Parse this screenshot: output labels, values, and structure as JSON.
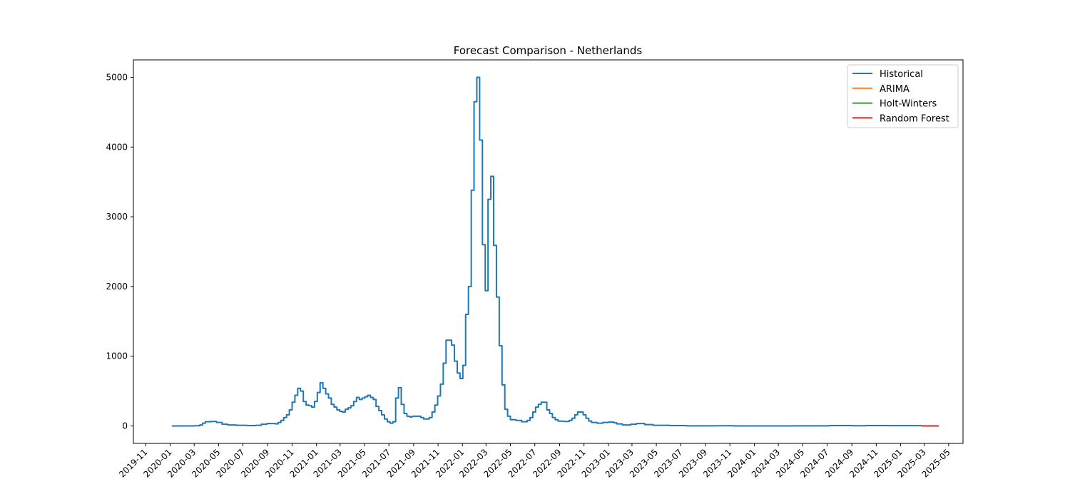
{
  "chart_data": {
    "type": "line",
    "title": "Forecast Comparison - Netherlands",
    "xlabel": "",
    "ylabel": "",
    "x_range": [
      "2019-10-01",
      "2025-06-06"
    ],
    "ylim": [
      -250,
      5250
    ],
    "y_ticks": [
      0,
      1000,
      2000,
      3000,
      4000,
      5000
    ],
    "x_ticks": [
      "2019-11",
      "2020-01",
      "2020-03",
      "2020-05",
      "2020-07",
      "2020-09",
      "2020-11",
      "2021-01",
      "2021-03",
      "2021-05",
      "2021-07",
      "2021-09",
      "2021-11",
      "2022-01",
      "2022-03",
      "2022-05",
      "2022-07",
      "2022-09",
      "2022-11",
      "2023-01",
      "2023-03",
      "2023-05",
      "2023-07",
      "2023-09",
      "2023-11",
      "2024-01",
      "2024-03",
      "2024-05",
      "2024-07",
      "2024-09",
      "2024-11",
      "2025-01",
      "2025-03",
      "2025-05"
    ],
    "grid": false,
    "legend_position": "top-right",
    "series": [
      {
        "name": "Historical",
        "color": "#1f77b4",
        "step": true,
        "points": [
          [
            "2020-01-05",
            0
          ],
          [
            "2020-02-09",
            0
          ],
          [
            "2020-03-01",
            3
          ],
          [
            "2020-03-15",
            15
          ],
          [
            "2020-03-22",
            40
          ],
          [
            "2020-03-29",
            60
          ],
          [
            "2020-04-12",
            65
          ],
          [
            "2020-04-26",
            50
          ],
          [
            "2020-05-10",
            25
          ],
          [
            "2020-05-24",
            15
          ],
          [
            "2020-06-14",
            10
          ],
          [
            "2020-07-12",
            5
          ],
          [
            "2020-08-02",
            10
          ],
          [
            "2020-08-16",
            25
          ],
          [
            "2020-08-30",
            35
          ],
          [
            "2020-09-20",
            30
          ],
          [
            "2020-09-27",
            50
          ],
          [
            "2020-10-04",
            80
          ],
          [
            "2020-10-11",
            120
          ],
          [
            "2020-10-18",
            160
          ],
          [
            "2020-10-25",
            230
          ],
          [
            "2020-11-01",
            340
          ],
          [
            "2020-11-08",
            440
          ],
          [
            "2020-11-15",
            540
          ],
          [
            "2020-11-22",
            500
          ],
          [
            "2020-11-29",
            350
          ],
          [
            "2020-12-06",
            300
          ],
          [
            "2020-12-13",
            290
          ],
          [
            "2020-12-20",
            270
          ],
          [
            "2020-12-27",
            350
          ],
          [
            "2021-01-03",
            480
          ],
          [
            "2021-01-10",
            620
          ],
          [
            "2021-01-17",
            540
          ],
          [
            "2021-01-24",
            460
          ],
          [
            "2021-01-31",
            400
          ],
          [
            "2021-02-07",
            310
          ],
          [
            "2021-02-14",
            270
          ],
          [
            "2021-02-21",
            230
          ],
          [
            "2021-02-28",
            210
          ],
          [
            "2021-03-07",
            200
          ],
          [
            "2021-03-14",
            240
          ],
          [
            "2021-03-21",
            260
          ],
          [
            "2021-03-28",
            290
          ],
          [
            "2021-04-04",
            350
          ],
          [
            "2021-04-11",
            410
          ],
          [
            "2021-04-18",
            380
          ],
          [
            "2021-04-25",
            400
          ],
          [
            "2021-05-02",
            420
          ],
          [
            "2021-05-09",
            440
          ],
          [
            "2021-05-16",
            410
          ],
          [
            "2021-05-23",
            380
          ],
          [
            "2021-05-30",
            280
          ],
          [
            "2021-06-06",
            220
          ],
          [
            "2021-06-13",
            160
          ],
          [
            "2021-06-20",
            100
          ],
          [
            "2021-06-27",
            60
          ],
          [
            "2021-07-04",
            40
          ],
          [
            "2021-07-11",
            60
          ],
          [
            "2021-07-18",
            400
          ],
          [
            "2021-07-25",
            550
          ],
          [
            "2021-08-01",
            310
          ],
          [
            "2021-08-08",
            180
          ],
          [
            "2021-08-15",
            140
          ],
          [
            "2021-08-22",
            130
          ],
          [
            "2021-08-29",
            140
          ],
          [
            "2021-09-05",
            140
          ],
          [
            "2021-09-12",
            140
          ],
          [
            "2021-09-19",
            120
          ],
          [
            "2021-09-26",
            100
          ],
          [
            "2021-10-10",
            120
          ],
          [
            "2021-10-17",
            200
          ],
          [
            "2021-10-24",
            300
          ],
          [
            "2021-10-31",
            430
          ],
          [
            "2021-11-07",
            600
          ],
          [
            "2021-11-14",
            900
          ],
          [
            "2021-11-21",
            1230
          ],
          [
            "2021-12-05",
            1160
          ],
          [
            "2021-12-12",
            930
          ],
          [
            "2021-12-19",
            760
          ],
          [
            "2021-12-26",
            680
          ],
          [
            "2022-01-02",
            870
          ],
          [
            "2022-01-09",
            1600
          ],
          [
            "2022-01-16",
            2000
          ],
          [
            "2022-01-23",
            3380
          ],
          [
            "2022-01-30",
            4650
          ],
          [
            "2022-02-06",
            5000
          ],
          [
            "2022-02-13",
            4100
          ],
          [
            "2022-02-20",
            2600
          ],
          [
            "2022-02-27",
            1940
          ],
          [
            "2022-03-06",
            3250
          ],
          [
            "2022-03-13",
            3580
          ],
          [
            "2022-03-20",
            2590
          ],
          [
            "2022-03-27",
            1850
          ],
          [
            "2022-04-03",
            1150
          ],
          [
            "2022-04-10",
            590
          ],
          [
            "2022-04-17",
            240
          ],
          [
            "2022-04-24",
            140
          ],
          [
            "2022-05-01",
            90
          ],
          [
            "2022-05-15",
            80
          ],
          [
            "2022-05-29",
            60
          ],
          [
            "2022-06-12",
            80
          ],
          [
            "2022-06-19",
            120
          ],
          [
            "2022-06-26",
            200
          ],
          [
            "2022-07-03",
            270
          ],
          [
            "2022-07-10",
            310
          ],
          [
            "2022-07-17",
            340
          ],
          [
            "2022-07-31",
            230
          ],
          [
            "2022-08-07",
            180
          ],
          [
            "2022-08-14",
            120
          ],
          [
            "2022-08-21",
            90
          ],
          [
            "2022-08-28",
            70
          ],
          [
            "2022-09-11",
            65
          ],
          [
            "2022-09-25",
            80
          ],
          [
            "2022-10-02",
            110
          ],
          [
            "2022-10-09",
            160
          ],
          [
            "2022-10-16",
            200
          ],
          [
            "2022-10-30",
            160
          ],
          [
            "2022-11-06",
            110
          ],
          [
            "2022-11-13",
            70
          ],
          [
            "2022-11-20",
            50
          ],
          [
            "2022-12-04",
            40
          ],
          [
            "2022-12-18",
            50
          ],
          [
            "2023-01-01",
            55
          ],
          [
            "2023-01-15",
            45
          ],
          [
            "2023-01-22",
            30
          ],
          [
            "2023-02-05",
            15
          ],
          [
            "2023-02-26",
            25
          ],
          [
            "2023-03-12",
            35
          ],
          [
            "2023-04-02",
            20
          ],
          [
            "2023-04-23",
            10
          ],
          [
            "2023-06-04",
            5
          ],
          [
            "2023-07-16",
            2
          ],
          [
            "2023-10-01",
            3
          ],
          [
            "2023-11-12",
            0
          ],
          [
            "2024-02-25",
            0
          ],
          [
            "2024-04-07",
            2
          ],
          [
            "2024-07-07",
            5
          ],
          [
            "2024-09-01",
            3
          ],
          [
            "2024-10-06",
            5
          ],
          [
            "2024-12-01",
            4
          ],
          [
            "2025-02-23",
            0
          ]
        ]
      },
      {
        "name": "ARIMA",
        "color": "#ff7f0e",
        "points": [
          [
            "2025-02-23",
            0
          ],
          [
            "2025-04-06",
            0
          ]
        ]
      },
      {
        "name": "Holt-Winters",
        "color": "#2ca02c",
        "points": [
          [
            "2025-02-23",
            0
          ],
          [
            "2025-04-06",
            0
          ]
        ]
      },
      {
        "name": "Random Forest",
        "color": "#d62728",
        "points": [
          [
            "2025-02-23",
            0
          ],
          [
            "2025-04-06",
            0
          ]
        ]
      }
    ]
  }
}
